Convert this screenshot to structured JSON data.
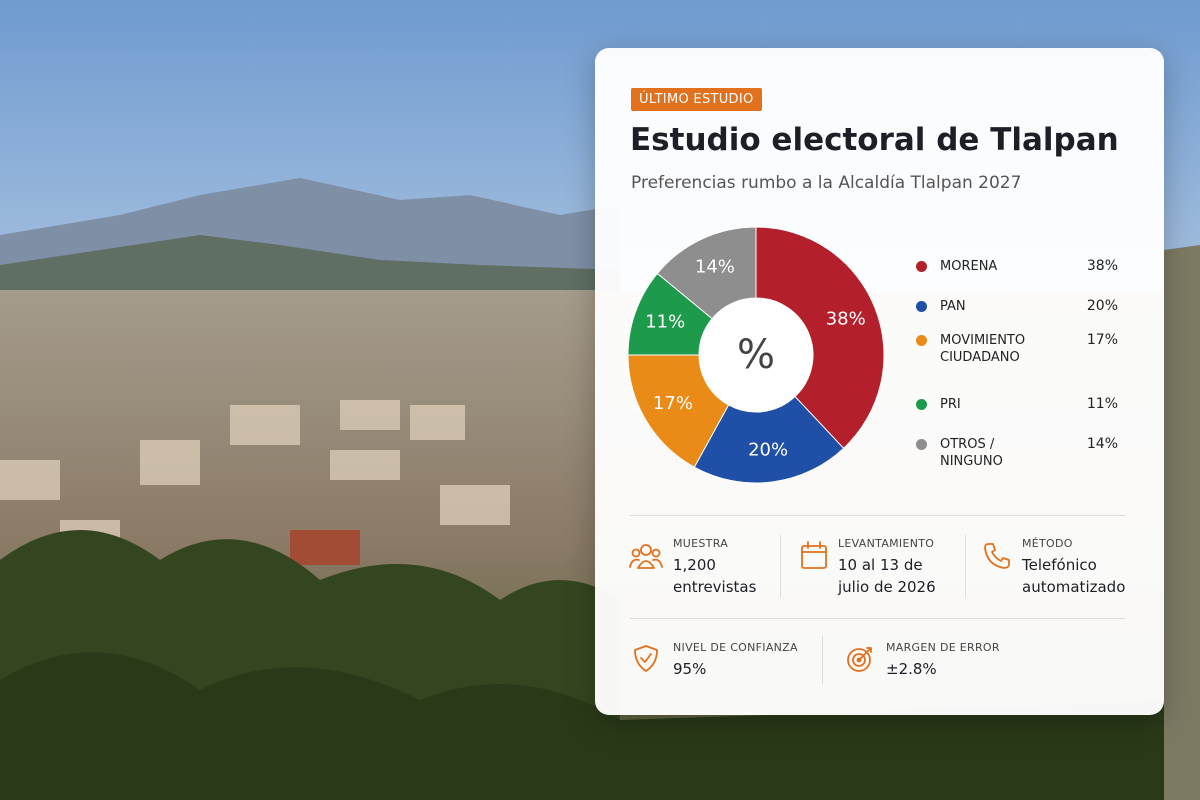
{
  "badge": "ÚLTIMO ESTUDIO",
  "chart_data": {
    "type": "donut",
    "title": "Estudio electoral de Tlalpan",
    "subtitle": "Preferencias rumbo a la Alcaldía Tlalpan 2027",
    "center_label": "%",
    "categories": [
      "MORENA",
      "PAN",
      "MOVIMIENTO CIUDADANO",
      "PRI",
      "OTROS / NINGUNO"
    ],
    "values": [
      38,
      20,
      17,
      11,
      14
    ],
    "value_labels": [
      "38%",
      "20%",
      "17%",
      "11%",
      "14%"
    ],
    "colors": [
      "#b31f2a",
      "#1f4fa6",
      "#ea8a17",
      "#1e9a4c",
      "#8e8e8e"
    ]
  },
  "stats": [
    {
      "label": "MUESTRA",
      "value": "1,200 entrevistas"
    },
    {
      "label": "LEVANTAMIENTO",
      "value": "10 al 13 de julio de 2026"
    },
    {
      "label": "MÉTODO",
      "value": "Telefónico automatizado"
    },
    {
      "label": "NIVEL DE CONFIANZA",
      "value": "95%"
    },
    {
      "label": "MARGEN DE ERROR",
      "value": "±2.8%"
    }
  ]
}
